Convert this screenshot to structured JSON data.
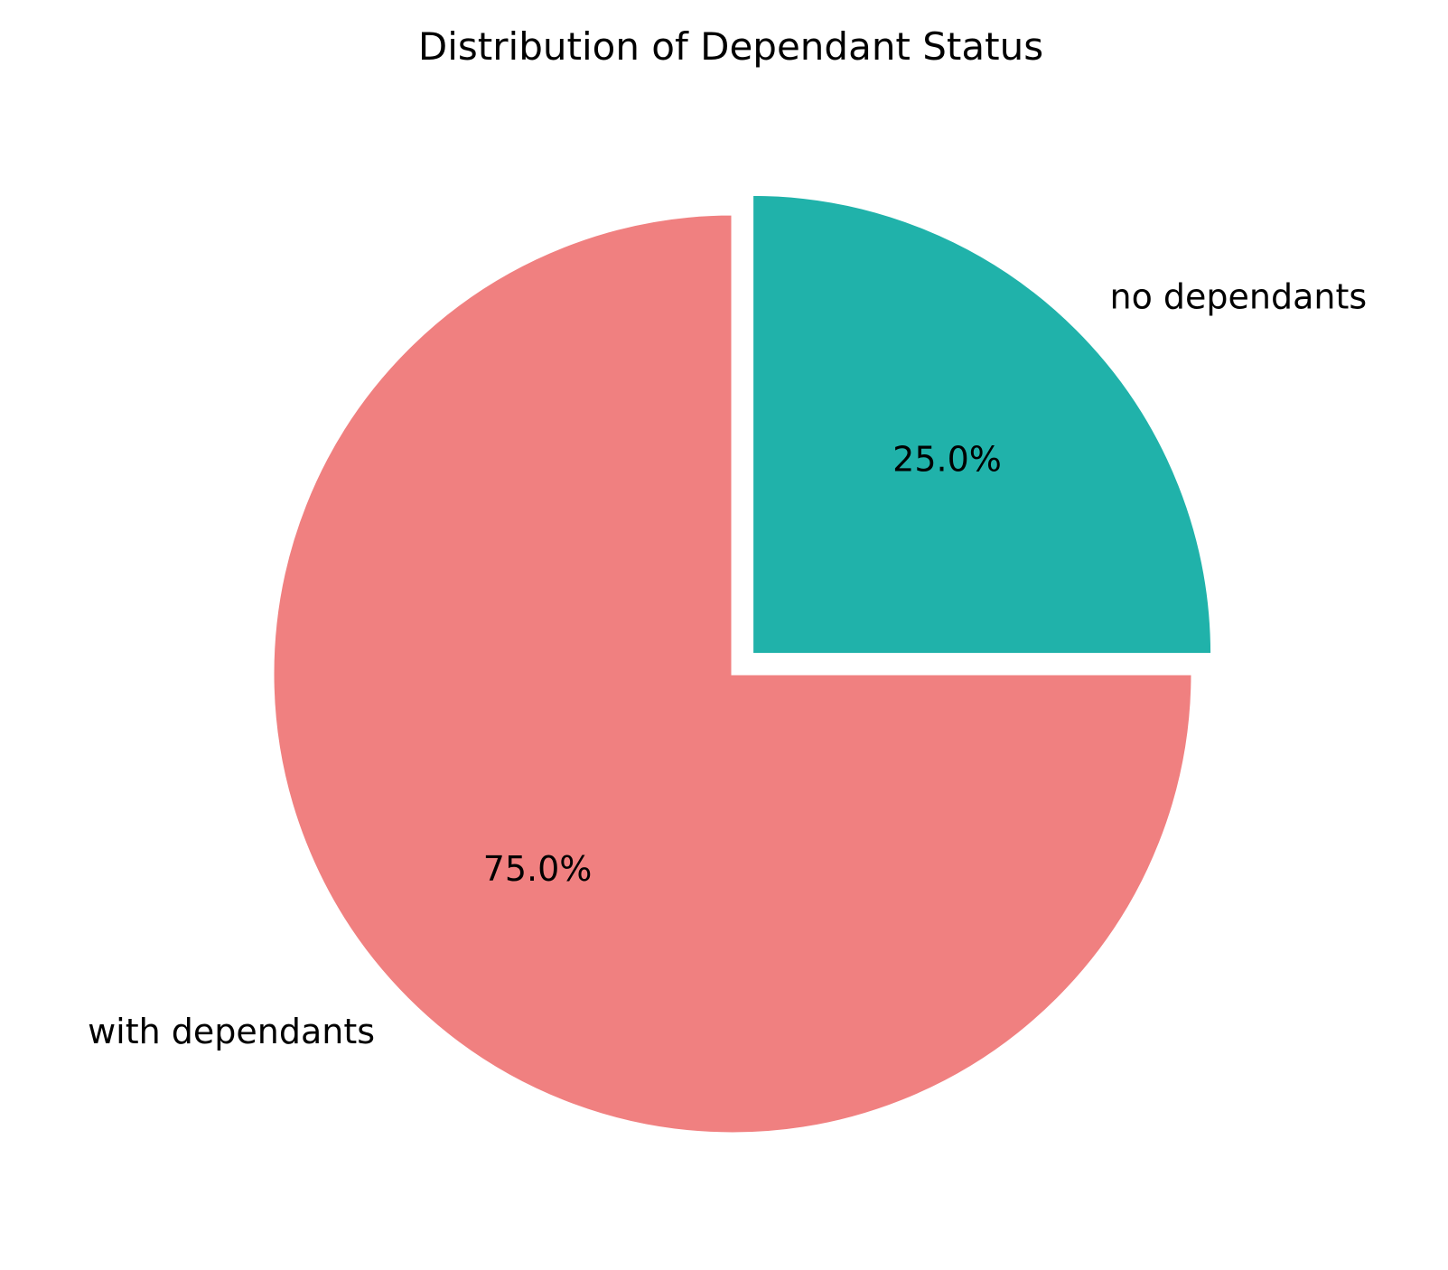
{
  "chart_data": {
    "type": "pie",
    "title": "Distribution of Dependant Status",
    "slices": [
      {
        "label": "no dependants",
        "value": 25.0,
        "pct_label": "25.0%",
        "color": "#20B2AA",
        "exploded": true
      },
      {
        "label": "with dependants",
        "value": 75.0,
        "pct_label": "75.0%",
        "color": "#F08080",
        "exploded": false
      }
    ],
    "start_angle_deg": 90,
    "direction": "clockwise",
    "edge_color": "#ffffff"
  }
}
